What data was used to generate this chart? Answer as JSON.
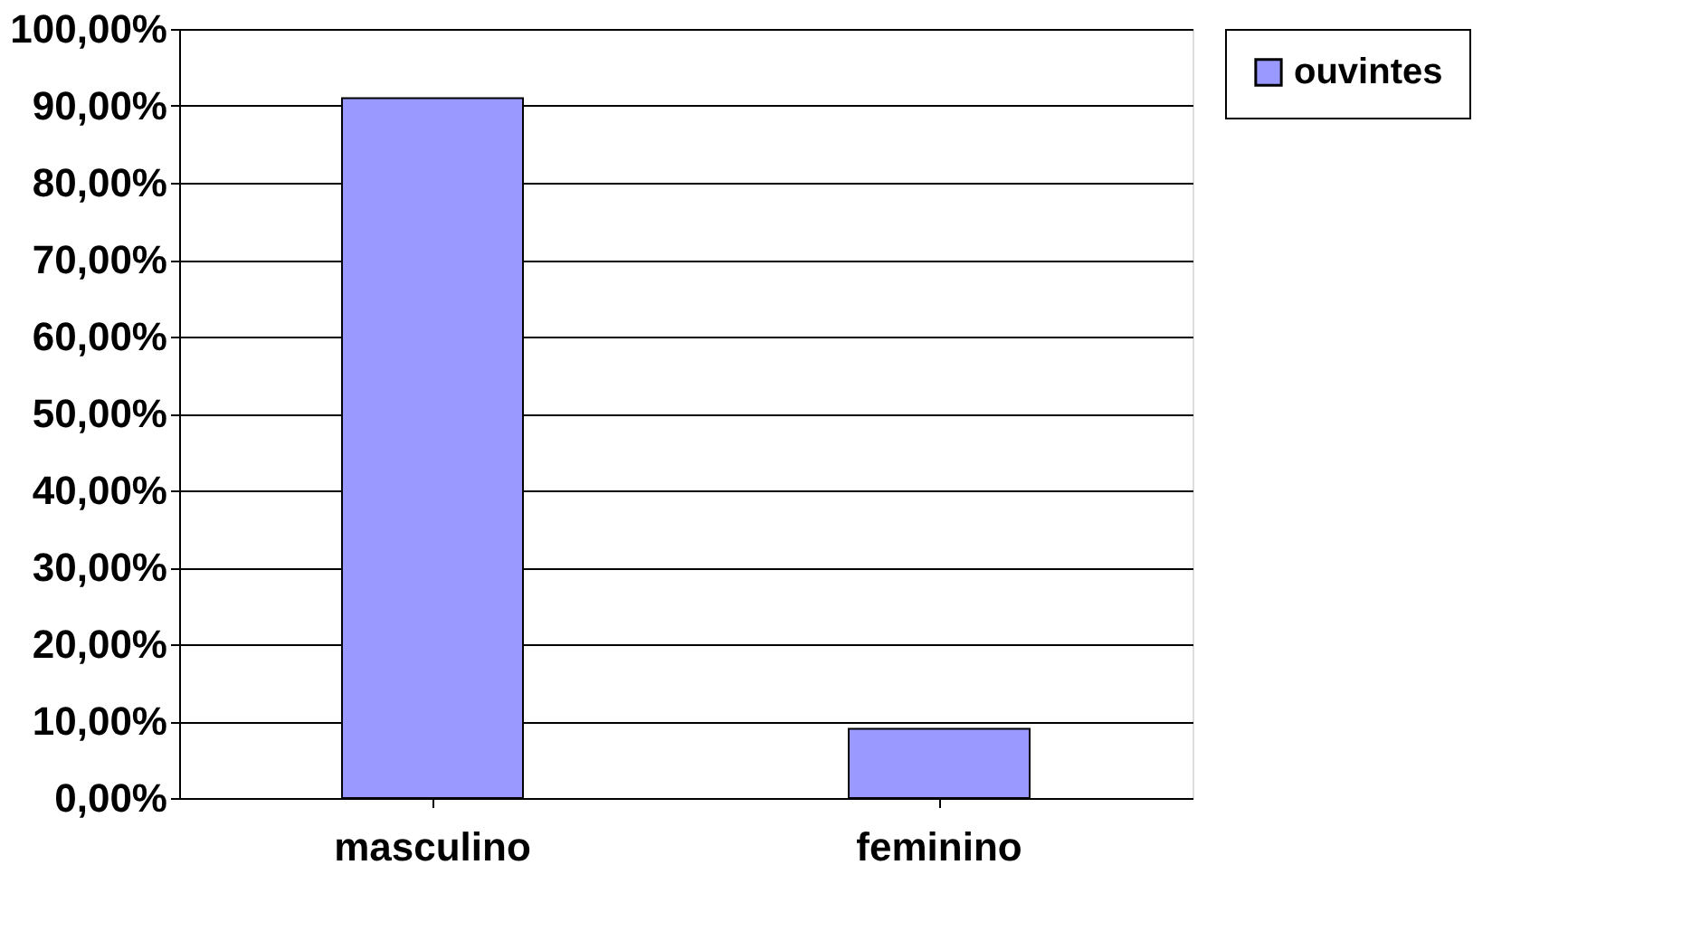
{
  "chart_data": {
    "type": "bar",
    "categories": [
      "masculino",
      "feminino"
    ],
    "series": [
      {
        "name": "ouvintes",
        "color": "#9999ff",
        "values": [
          91,
          9
        ]
      }
    ],
    "ylim": [
      0,
      100
    ],
    "yticks": [
      {
        "value": 0,
        "label": "0,00%"
      },
      {
        "value": 10,
        "label": "10,00%"
      },
      {
        "value": 20,
        "label": "20,00%"
      },
      {
        "value": 30,
        "label": "30,00%"
      },
      {
        "value": 40,
        "label": "40,00%"
      },
      {
        "value": 50,
        "label": "50,00%"
      },
      {
        "value": 60,
        "label": "60,00%"
      },
      {
        "value": 70,
        "label": "70,00%"
      },
      {
        "value": 80,
        "label": "80,00%"
      },
      {
        "value": 90,
        "label": "90,00%"
      },
      {
        "value": 100,
        "label": "100,00%"
      }
    ],
    "grid": "y",
    "legend": "right"
  }
}
